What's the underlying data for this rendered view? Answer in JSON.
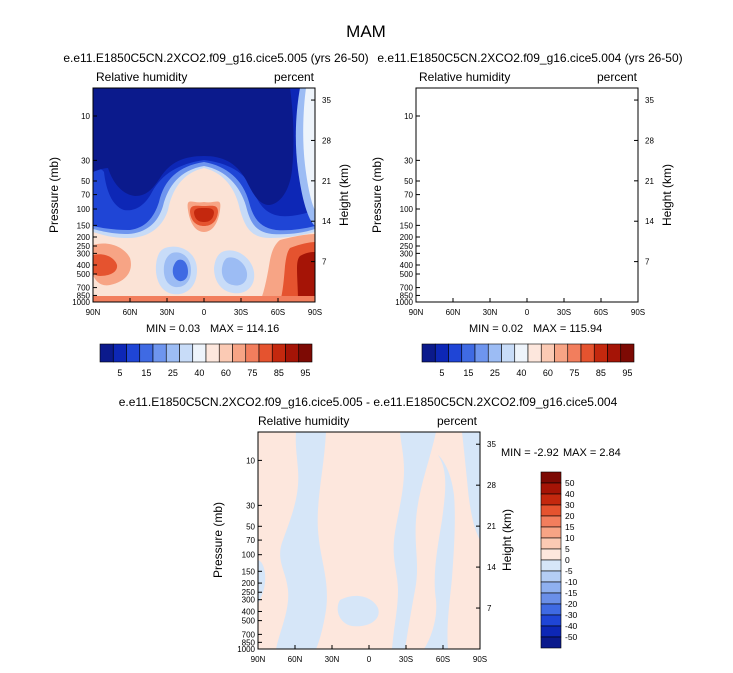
{
  "main_title": "MAM",
  "colors": {
    "lowest": "#0b1a8c",
    "low": "#1f45d6",
    "mid_low": "#b9d4f5",
    "mid": "#fbe0d2",
    "mid_high": "#f48a6a",
    "high": "#c4280e",
    "highest": "#8a0a06"
  },
  "chart_data": [
    {
      "id": "p1",
      "type": "contour",
      "title": "e.e11.E1850C5CN.2XCO2.f09_g16.cice5.005 (yrs 26-50)",
      "left_label": "Relative humidity",
      "right_label": "percent",
      "ylabel": "Pressure (mb)",
      "y2label": "Height (km)",
      "x_ticks": [
        "90N",
        "60N",
        "30N",
        "0",
        "30S",
        "60S",
        "90S"
      ],
      "y_ticks": [
        "10",
        "30",
        "50",
        "70",
        "100",
        "150",
        "200",
        "250",
        "300",
        "400",
        "500",
        "700",
        "850",
        "1000"
      ],
      "y2_ticks": [
        "35",
        "28",
        "21",
        "14",
        "7"
      ],
      "min_label": "MIN =  0.03",
      "max_label": "MAX = 114.16",
      "colorbar_labels": [
        "5",
        "15",
        "25",
        "40",
        "60",
        "75",
        "85",
        "95"
      ],
      "colorbar_colors": [
        "#0b1a8c",
        "#0d27b6",
        "#1f45d6",
        "#3f6ae3",
        "#6e95ee",
        "#9cbcf4",
        "#c8dcf8",
        "#eef4fb",
        "#fde7dd",
        "#fbcab4",
        "#f7a485",
        "#f27e5d",
        "#e5532f",
        "#c4280e",
        "#a51406",
        "#7d0a04"
      ]
    },
    {
      "id": "p2",
      "type": "contour",
      "title": "e.e11.E1850C5CN.2XCO2.f09_g16.cice5.004 (yrs 26-50)",
      "left_label": "Relative humidity",
      "right_label": "percent",
      "ylabel": "Pressure (mb)",
      "y2label": "Height (km)",
      "x_ticks": [
        "90N",
        "60N",
        "30N",
        "0",
        "30S",
        "60S",
        "90S"
      ],
      "y_ticks": [
        "10",
        "30",
        "50",
        "70",
        "100",
        "150",
        "200",
        "250",
        "300",
        "400",
        "500",
        "700",
        "850",
        "1000"
      ],
      "y2_ticks": [
        "35",
        "28",
        "21",
        "14",
        "7"
      ],
      "min_label": "MIN =  0.02",
      "max_label": "MAX = 115.94",
      "colorbar_labels": [
        "5",
        "15",
        "25",
        "40",
        "60",
        "75",
        "85",
        "95"
      ],
      "colorbar_colors": [
        "#0b1a8c",
        "#0d27b6",
        "#1f45d6",
        "#3f6ae3",
        "#6e95ee",
        "#9cbcf4",
        "#c8dcf8",
        "#eef4fb",
        "#fde7dd",
        "#fbcab4",
        "#f7a485",
        "#f27e5d",
        "#e5532f",
        "#c4280e",
        "#a51406",
        "#7d0a04"
      ]
    },
    {
      "id": "p3",
      "type": "contour",
      "title": "e.e11.E1850C5CN.2XCO2.f09_g16.cice5.005 - e.e11.E1850C5CN.2XCO2.f09_g16.cice5.004",
      "left_label": "Relative humidity",
      "right_label": "percent",
      "ylabel": "Pressure (mb)",
      "y2label": "Height (km)",
      "x_ticks": [
        "90N",
        "60N",
        "30N",
        "0",
        "30S",
        "60S",
        "90S"
      ],
      "y_ticks": [
        "10",
        "30",
        "50",
        "70",
        "100",
        "150",
        "200",
        "250",
        "300",
        "400",
        "500",
        "700",
        "850",
        "1000"
      ],
      "y2_ticks": [
        "35",
        "28",
        "21",
        "14",
        "7"
      ],
      "min_label": "MIN =  -2.92",
      "max_label": "MAX =  2.84",
      "colorbar_labels": [
        "50",
        "40",
        "30",
        "20",
        "15",
        "10",
        "5",
        "0",
        "-5",
        "-10",
        "-15",
        "-20",
        "-30",
        "-40",
        "-50"
      ],
      "colorbar_colors": [
        "#7d0a04",
        "#a51406",
        "#c4280e",
        "#e5532f",
        "#f27e5d",
        "#f7a485",
        "#fbcab4",
        "#fde7dd",
        "#d6e6f8",
        "#b4cdf4",
        "#8fb0ef",
        "#6a8fe8",
        "#3f6ae3",
        "#1f45d6",
        "#0d27b6",
        "#0b1a8c"
      ]
    }
  ]
}
